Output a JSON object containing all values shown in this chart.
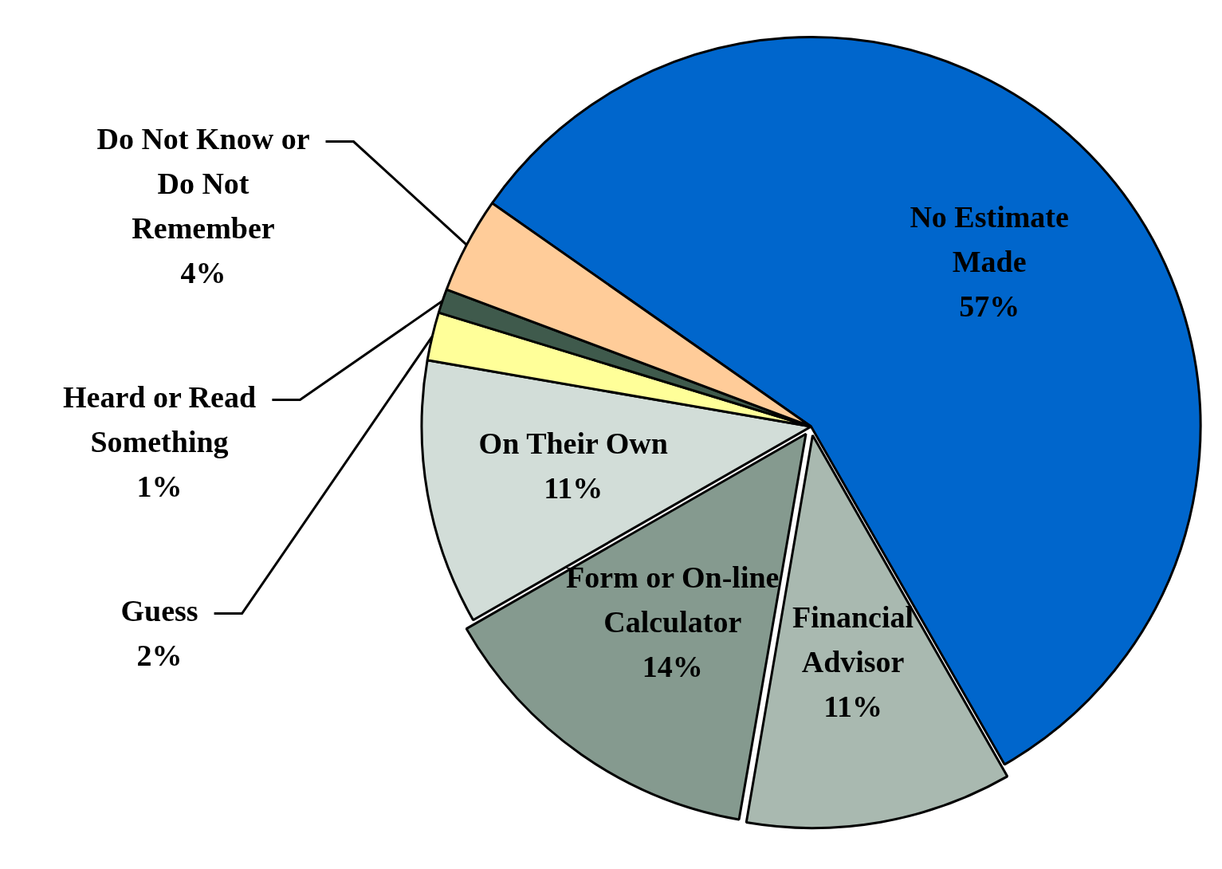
{
  "chart_data": {
    "type": "pie",
    "categories": [
      "No Estimate Made",
      "Financial Advisor",
      "Form or On-line Calculator",
      "On Their Own",
      "Guess",
      "Heard or Read Something",
      "Do Not Know or Do Not Remember"
    ],
    "values": [
      57,
      11,
      14,
      11,
      2,
      1,
      4
    ],
    "value_labels": [
      "57%",
      "11%",
      "14%",
      "11%",
      "2%",
      "1%",
      "4%"
    ],
    "colors": [
      "#0066cc",
      "#a9b9b0",
      "#859a8f",
      "#d2ddd8",
      "#ffff99",
      "#3f5a4c",
      "#ffcc99"
    ],
    "legend": false
  }
}
